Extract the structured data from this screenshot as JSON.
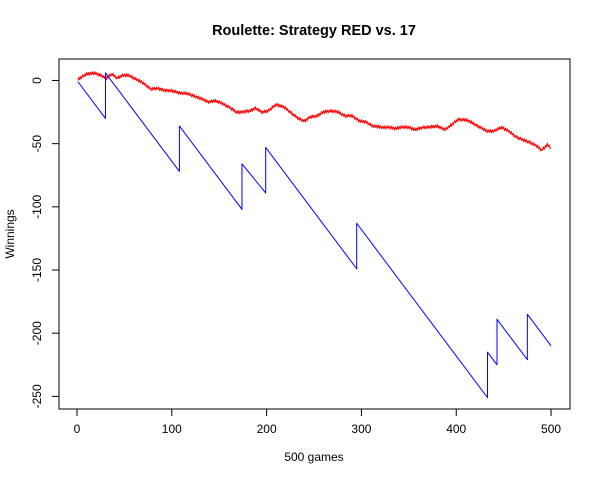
{
  "chart_data": {
    "type": "line",
    "title": "Roulette: Strategy RED vs. 17",
    "xlabel": "500 games",
    "ylabel": "Winnings",
    "xlim": [
      -19,
      520
    ],
    "ylim": [
      -260,
      17
    ],
    "x_ticks": [
      0,
      100,
      200,
      300,
      400,
      500
    ],
    "y_ticks": [
      0,
      -50,
      -100,
      -150,
      -200,
      -250
    ],
    "grid": false,
    "legend": "none",
    "series": [
      {
        "color": "#ff0000",
        "style": "random-walk",
        "points": [
          [
            1,
            1
          ],
          [
            10,
            5
          ],
          [
            18,
            6
          ],
          [
            25,
            4
          ],
          [
            31,
            2
          ],
          [
            37,
            5
          ],
          [
            42,
            2
          ],
          [
            48,
            4
          ],
          [
            55,
            4
          ],
          [
            62,
            1
          ],
          [
            70,
            -2
          ],
          [
            78,
            -7
          ],
          [
            85,
            -6
          ],
          [
            92,
            -8
          ],
          [
            100,
            -8
          ],
          [
            108,
            -10
          ],
          [
            115,
            -10
          ],
          [
            122,
            -12
          ],
          [
            130,
            -14
          ],
          [
            138,
            -17
          ],
          [
            145,
            -16
          ],
          [
            153,
            -18
          ],
          [
            160,
            -21
          ],
          [
            168,
            -25
          ],
          [
            175,
            -25
          ],
          [
            182,
            -24
          ],
          [
            188,
            -22
          ],
          [
            195,
            -25
          ],
          [
            202,
            -24
          ],
          [
            210,
            -19
          ],
          [
            218,
            -21
          ],
          [
            225,
            -25
          ],
          [
            233,
            -30
          ],
          [
            240,
            -32
          ],
          [
            246,
            -29
          ],
          [
            253,
            -28
          ],
          [
            260,
            -25
          ],
          [
            268,
            -24
          ],
          [
            275,
            -25
          ],
          [
            283,
            -28
          ],
          [
            290,
            -28
          ],
          [
            298,
            -32
          ],
          [
            305,
            -33
          ],
          [
            312,
            -36
          ],
          [
            320,
            -37
          ],
          [
            328,
            -37
          ],
          [
            335,
            -38
          ],
          [
            342,
            -37
          ],
          [
            350,
            -37
          ],
          [
            357,
            -39
          ],
          [
            365,
            -37
          ],
          [
            372,
            -37
          ],
          [
            380,
            -36
          ],
          [
            388,
            -39
          ],
          [
            395,
            -35
          ],
          [
            402,
            -31
          ],
          [
            410,
            -31
          ],
          [
            418,
            -34
          ],
          [
            425,
            -37
          ],
          [
            432,
            -40
          ],
          [
            440,
            -40
          ],
          [
            448,
            -37
          ],
          [
            455,
            -40
          ],
          [
            462,
            -44
          ],
          [
            470,
            -47
          ],
          [
            478,
            -49
          ],
          [
            485,
            -52
          ],
          [
            490,
            -55
          ],
          [
            496,
            -51
          ],
          [
            500,
            -53
          ]
        ]
      },
      {
        "color": "#0000ff",
        "style": "segments",
        "points": [
          [
            1,
            -1
          ],
          [
            30,
            -30
          ],
          [
            30,
            6
          ],
          [
            108,
            -72
          ],
          [
            108,
            -36
          ],
          [
            174,
            -102
          ],
          [
            174,
            -66
          ],
          [
            199,
            -89
          ],
          [
            199,
            -53
          ],
          [
            295,
            -149
          ],
          [
            295,
            -113
          ],
          [
            433,
            -251
          ],
          [
            433,
            -215
          ],
          [
            443,
            -225
          ],
          [
            443,
            -189
          ],
          [
            475,
            -221
          ],
          [
            475,
            -185
          ],
          [
            500,
            -210
          ]
        ]
      }
    ]
  }
}
